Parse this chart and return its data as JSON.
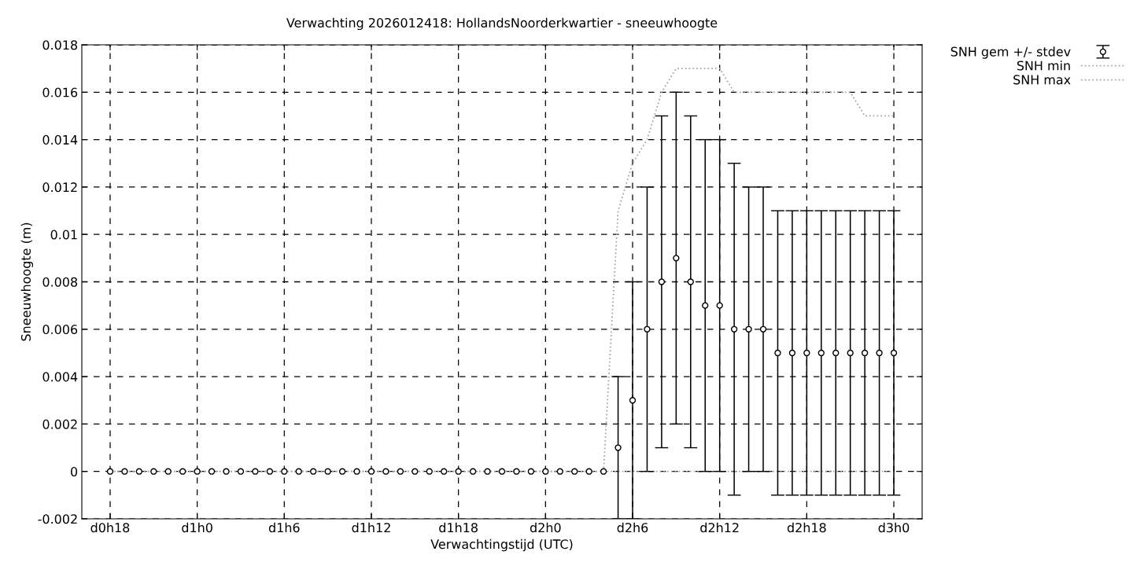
{
  "chart_data": {
    "type": "line",
    "title": "Verwachting 2026012418: HollandsNoorderkwartier - sneeuwhoogte",
    "xlabel": "Verwachtingstijd (UTC)",
    "ylabel": "Sneeuwhoogte (m)",
    "categories": [
      "d0h18",
      null,
      null,
      null,
      null,
      null,
      "d1h0",
      null,
      null,
      null,
      null,
      null,
      "d1h6",
      null,
      null,
      null,
      null,
      null,
      "d1h12",
      null,
      null,
      null,
      null,
      null,
      "d1h18",
      null,
      null,
      null,
      null,
      null,
      "d2h0",
      null,
      null,
      null,
      null,
      null,
      "d2h6",
      null,
      null,
      null,
      null,
      null,
      "d2h12",
      null,
      null,
      null,
      null,
      null,
      "d2h18",
      null,
      null,
      null,
      null,
      null,
      "d3h0"
    ],
    "series": [
      {
        "name": "SNH gem +/- stdev",
        "type": "scatter",
        "marker": "circle",
        "color": "#000000",
        "values": [
          0,
          0,
          0,
          0,
          0,
          0,
          0,
          0,
          0,
          0,
          0,
          0,
          0,
          0,
          0,
          0,
          0,
          0,
          0,
          0,
          0,
          0,
          0,
          0,
          0,
          0,
          0,
          0,
          0,
          0,
          0,
          0,
          0,
          0,
          0,
          0.001,
          0.003,
          0.006,
          0.008,
          0.009,
          0.008,
          0.007,
          0.007,
          0.006,
          0.006,
          0.006,
          0.005,
          0.005,
          0.005,
          0.005,
          0.005,
          0.005,
          0.005,
          0.005,
          0.005
        ],
        "errors": [
          null,
          null,
          null,
          null,
          null,
          null,
          null,
          null,
          null,
          null,
          null,
          null,
          null,
          null,
          null,
          null,
          null,
          null,
          null,
          null,
          null,
          null,
          null,
          null,
          null,
          null,
          null,
          null,
          null,
          null,
          null,
          null,
          null,
          null,
          null,
          0.003,
          0.005,
          0.006,
          0.007,
          0.007,
          0.007,
          0.007,
          0.007,
          0.007,
          0.006,
          0.006,
          0.006,
          0.006,
          0.006,
          0.006,
          0.006,
          0.006,
          0.006,
          0.006,
          0.006
        ]
      },
      {
        "name": "SNH min",
        "line_style": "dotted",
        "color": "#a8a8a8",
        "values": [
          0,
          0,
          0,
          0,
          0,
          0,
          0,
          0,
          0,
          0,
          0,
          0,
          0,
          0,
          0,
          0,
          0,
          0,
          0,
          0,
          0,
          0,
          0,
          0,
          0,
          0,
          0,
          0,
          0,
          0,
          0,
          0,
          0,
          0,
          0,
          0,
          0,
          0,
          0,
          0,
          0,
          0,
          0,
          0,
          0,
          0,
          0,
          0,
          0,
          0,
          0,
          0,
          0,
          0,
          0
        ]
      },
      {
        "name": "SNH max",
        "line_style": "dotted",
        "color": "#a8a8a8",
        "values": [
          0,
          0,
          0,
          0,
          0,
          0,
          0,
          0,
          0,
          0,
          0,
          0,
          0,
          0,
          0,
          0,
          0,
          0,
          0,
          0,
          0,
          0,
          0,
          0,
          0,
          0,
          0,
          0,
          0,
          0,
          0,
          0,
          0,
          0,
          0,
          0.011,
          0.013,
          0.014,
          0.016,
          0.017,
          0.017,
          0.017,
          0.017,
          0.016,
          0.016,
          0.016,
          0.016,
          0.016,
          0.016,
          0.016,
          0.016,
          0.016,
          0.015,
          0.015,
          0.015
        ]
      }
    ],
    "ylim": [
      -0.002,
      0.018
    ],
    "yticks": [
      {
        "value": -0.002,
        "label": "-0.002"
      },
      {
        "value": 0,
        "label": "0"
      },
      {
        "value": 0.002,
        "label": "0.002"
      },
      {
        "value": 0.004,
        "label": "0.004"
      },
      {
        "value": 0.006,
        "label": "0.006"
      },
      {
        "value": 0.008,
        "label": "0.008"
      },
      {
        "value": 0.01,
        "label": "0.01"
      },
      {
        "value": 0.012,
        "label": "0.012"
      },
      {
        "value": 0.014,
        "label": "0.014"
      },
      {
        "value": 0.016,
        "label": "0.016"
      },
      {
        "value": 0.018,
        "label": "0.018"
      }
    ],
    "grid": true,
    "legend": "top right"
  }
}
